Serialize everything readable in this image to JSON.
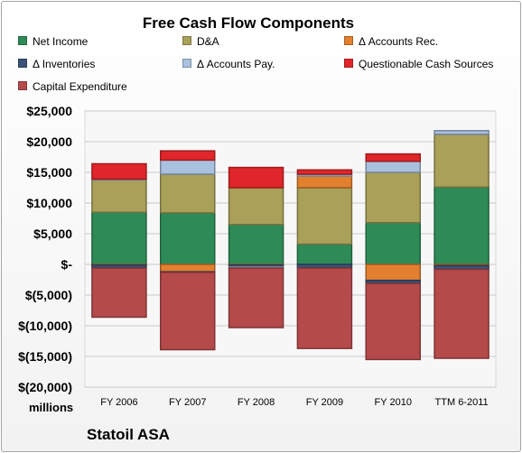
{
  "chart_data": {
    "type": "bar",
    "stacked": true,
    "title": "Free Cash Flow Components",
    "caption": "Statoil ASA",
    "units_label": "millions",
    "categories": [
      "FY 2006",
      "FY 2007",
      "FY 2008",
      "FY 2009",
      "FY 2010",
      "TTM 6-2011"
    ],
    "ylim": [
      -20000,
      25000
    ],
    "yticks": [
      25000,
      20000,
      15000,
      10000,
      5000,
      0,
      -5000,
      -10000,
      -15000,
      -20000
    ],
    "ytick_labels": [
      "$25,000",
      "$20,000",
      "$15,000",
      "$10,000",
      "$5,000",
      "$-",
      "$(5,000)",
      "$(10,000)",
      "$(15,000)",
      "$(20,000)"
    ],
    "grid": true,
    "legend_position": "top",
    "series": [
      {
        "name": "Net Income",
        "color": "#2e8b57",
        "values": [
          8500,
          8400,
          6500,
          3300,
          6800,
          12600
        ]
      },
      {
        "name": "D&A",
        "color": "#a9a05a",
        "values": [
          5300,
          6300,
          6000,
          9200,
          8200,
          8600
        ]
      },
      {
        "name": "Δ Accounts Rec.",
        "color": "#e3802f",
        "values": [
          -100,
          -1200,
          -100,
          1900,
          -2600,
          -200
        ]
      },
      {
        "name": "Δ Inventories",
        "color": "#3b5277",
        "values": [
          -500,
          -100,
          -300,
          -600,
          -500,
          -600
        ]
      },
      {
        "name": "Δ Accounts Pay.",
        "color": "#a9c0de",
        "values": [
          100,
          2300,
          -200,
          300,
          1800,
          600
        ]
      },
      {
        "name": "Questionable Cash Sources",
        "color": "#e0262a",
        "values": [
          2500,
          1500,
          3300,
          700,
          1200,
          0
        ]
      },
      {
        "name": "Capital Expenditure",
        "color": "#b54a4b",
        "values": [
          -8000,
          -12600,
          -9700,
          -13100,
          -12400,
          -14500
        ]
      }
    ]
  }
}
